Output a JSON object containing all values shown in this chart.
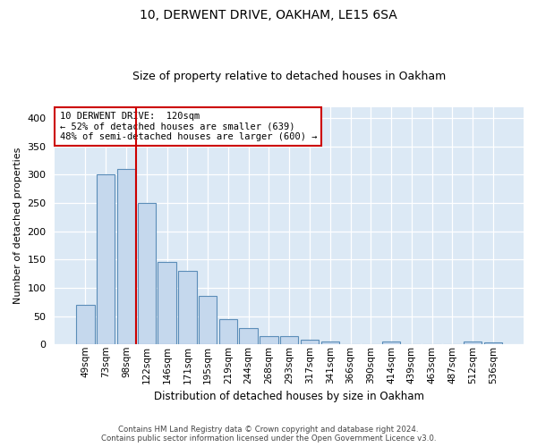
{
  "title1": "10, DERWENT DRIVE, OAKHAM, LE15 6SA",
  "title2": "Size of property relative to detached houses in Oakham",
  "xlabel": "Distribution of detached houses by size in Oakham",
  "ylabel": "Number of detached properties",
  "categories": [
    "49sqm",
    "73sqm",
    "98sqm",
    "122sqm",
    "146sqm",
    "171sqm",
    "195sqm",
    "219sqm",
    "244sqm",
    "268sqm",
    "293sqm",
    "317sqm",
    "341sqm",
    "366sqm",
    "390sqm",
    "414sqm",
    "439sqm",
    "463sqm",
    "487sqm",
    "512sqm",
    "536sqm"
  ],
  "values": [
    70,
    300,
    310,
    250,
    145,
    130,
    85,
    45,
    28,
    15,
    15,
    8,
    5,
    0,
    0,
    5,
    0,
    0,
    0,
    5,
    3
  ],
  "bar_color": "#c5d8ed",
  "bar_edge_color": "#5b8db8",
  "vline_x": 2.5,
  "vline_color": "#cc0000",
  "annotation_line1": "10 DERWENT DRIVE:  120sqm",
  "annotation_line2": "← 52% of detached houses are smaller (639)",
  "annotation_line3": "48% of semi-detached houses are larger (600) →",
  "annotation_box_facecolor": "white",
  "annotation_box_edgecolor": "#cc0000",
  "footer_line1": "Contains HM Land Registry data © Crown copyright and database right 2024.",
  "footer_line2": "Contains public sector information licensed under the Open Government Licence v3.0.",
  "ylim": [
    0,
    420
  ],
  "yticks": [
    0,
    50,
    100,
    150,
    200,
    250,
    300,
    350,
    400
  ],
  "bg_color": "#dce9f5",
  "grid_color": "#c8d8e8",
  "title1_fontsize": 10,
  "title2_fontsize": 9
}
